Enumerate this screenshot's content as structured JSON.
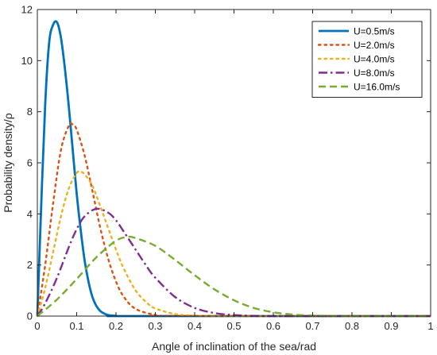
{
  "chart_data": {
    "type": "line",
    "title": "",
    "xlabel": "Angle of inclination of the sea/rad",
    "ylabel": "Probability density/ρ",
    "xlim": [
      0,
      1
    ],
    "ylim": [
      0,
      12
    ],
    "x_ticks": [
      "0",
      "0.1",
      "0.2",
      "0.3",
      "0.4",
      "0.5",
      "0.6",
      "0.7",
      "0.8",
      "0.9",
      "1"
    ],
    "y_ticks": [
      "0",
      "2",
      "4",
      "6",
      "8",
      "10",
      "12"
    ],
    "grid": false,
    "legend_position": "top-right",
    "series": [
      {
        "name": "U=0.5m/s",
        "color": "#0072BD",
        "style": "solid",
        "x": [
          0,
          0.01,
          0.02,
          0.03,
          0.04,
          0.05,
          0.06,
          0.07,
          0.08,
          0.09,
          0.1,
          0.11,
          0.12,
          0.13,
          0.14,
          0.15,
          0.16,
          0.17,
          0.18,
          0.2,
          0.25,
          1.0
        ],
        "y": [
          0,
          4.4,
          8.3,
          10.7,
          11.4,
          11.5,
          10.9,
          9.7,
          8.2,
          6.5,
          4.8,
          3.4,
          2.2,
          1.35,
          0.75,
          0.4,
          0.2,
          0.1,
          0.04,
          0.01,
          0,
          0
        ]
      },
      {
        "name": "U=2.0m/s",
        "color": "#D95319",
        "style": "dotted",
        "x": [
          0,
          0.02,
          0.04,
          0.06,
          0.08,
          0.09,
          0.1,
          0.12,
          0.14,
          0.16,
          0.18,
          0.2,
          0.22,
          0.25,
          0.3,
          0.35,
          1.0
        ],
        "y": [
          0,
          2.0,
          4.4,
          6.5,
          7.45,
          7.5,
          7.3,
          6.3,
          4.9,
          3.45,
          2.25,
          1.35,
          0.75,
          0.28,
          0.05,
          0.01,
          0
        ]
      },
      {
        "name": "U=4.0m/s",
        "color": "#EDB120",
        "style": "dotted",
        "x": [
          0,
          0.02,
          0.04,
          0.06,
          0.08,
          0.1,
          0.11,
          0.12,
          0.14,
          0.16,
          0.18,
          0.2,
          0.22,
          0.25,
          0.28,
          0.3,
          0.35,
          0.4,
          0.45,
          0.5,
          1.0
        ],
        "y": [
          0,
          1.1,
          2.5,
          3.9,
          5.0,
          5.6,
          5.65,
          5.55,
          5.1,
          4.3,
          3.45,
          2.6,
          1.85,
          1.0,
          0.5,
          0.3,
          0.08,
          0.02,
          0,
          0,
          0
        ]
      },
      {
        "name": "U=8.0m/s",
        "color": "#7E2F8E",
        "style": "dashdot",
        "x": [
          0,
          0.02,
          0.05,
          0.08,
          0.1,
          0.12,
          0.15,
          0.18,
          0.2,
          0.22,
          0.25,
          0.28,
          0.3,
          0.35,
          0.4,
          0.45,
          0.5,
          0.55,
          0.6,
          0.65,
          1.0
        ],
        "y": [
          0,
          0.5,
          1.5,
          2.7,
          3.4,
          3.9,
          4.2,
          4.05,
          3.75,
          3.3,
          2.6,
          1.9,
          1.5,
          0.75,
          0.32,
          0.12,
          0.04,
          0.01,
          0,
          0,
          0
        ]
      },
      {
        "name": "U=16.0m/s",
        "color": "#77AC30",
        "style": "dashed",
        "x": [
          0,
          0.05,
          0.1,
          0.15,
          0.2,
          0.23,
          0.25,
          0.3,
          0.35,
          0.4,
          0.45,
          0.5,
          0.55,
          0.6,
          0.65,
          0.7,
          0.75,
          0.8,
          1.0
        ],
        "y": [
          0,
          0.65,
          1.45,
          2.3,
          2.95,
          3.1,
          3.05,
          2.75,
          2.2,
          1.6,
          1.05,
          0.62,
          0.32,
          0.15,
          0.06,
          0.02,
          0.01,
          0,
          0
        ]
      }
    ]
  }
}
